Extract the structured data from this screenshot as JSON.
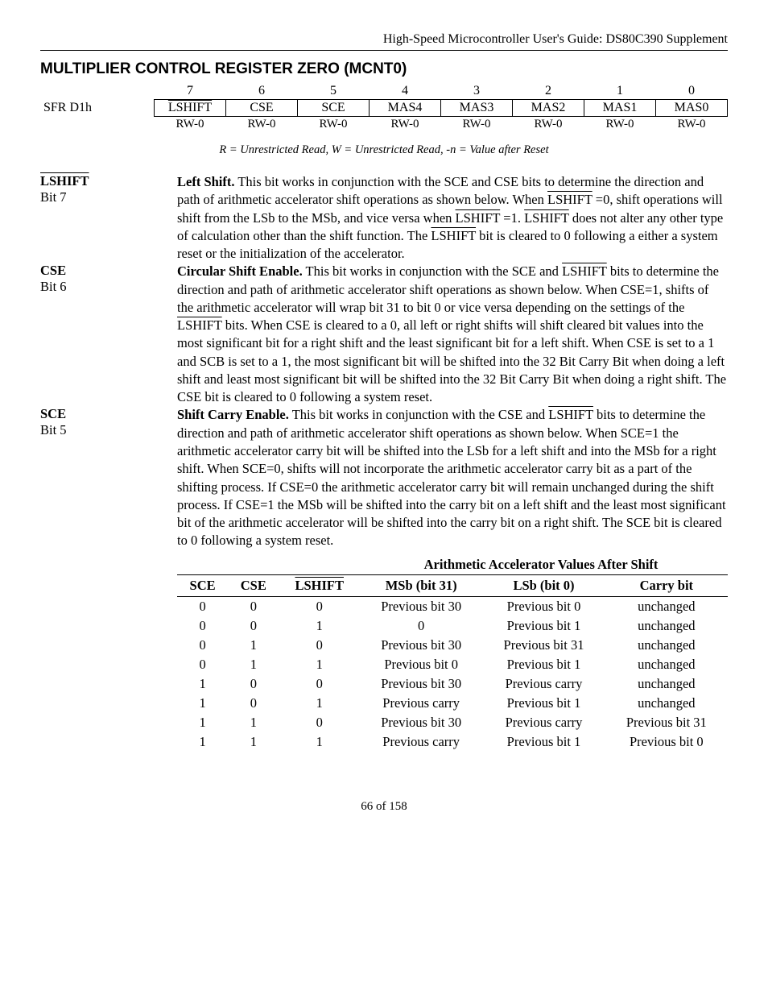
{
  "header": "High-Speed Microcontroller User's Guide: DS80C390 Supplement",
  "section_title": "MULTIPLIER CONTROL REGISTER ZERO (MCNT0)",
  "sfr_label": "SFR D1h",
  "bit_numbers": [
    "7",
    "6",
    "5",
    "4",
    "3",
    "2",
    "1",
    "0"
  ],
  "bit_names": [
    "LSHIFT",
    "CSE",
    "SCE",
    "MAS4",
    "MAS3",
    "MAS2",
    "MAS1",
    "MAS0"
  ],
  "bit_overline": [
    true,
    false,
    false,
    false,
    false,
    false,
    false,
    false
  ],
  "rw_values": [
    "RW-0",
    "RW-0",
    "RW-0",
    "RW-0",
    "RW-0",
    "RW-0",
    "RW-0",
    "RW-0"
  ],
  "legend": "R = Unrestricted Read, W = Unrestricted Read, -n = Value after Reset",
  "descs": {
    "lshift": {
      "name": "LSHIFT",
      "bit": "Bit 7"
    },
    "cse": {
      "name": "CSE",
      "bit": "Bit 6"
    },
    "sce": {
      "name": "SCE",
      "bit": "Bit 5"
    }
  },
  "shift_header": "Arithmetic Accelerator Values After Shift",
  "shift_cols": [
    "SCE",
    "CSE",
    "LSHIFT",
    "MSb (bit 31)",
    "LSb (bit 0)",
    "Carry bit"
  ],
  "shift_col_overline": [
    false,
    false,
    true,
    false,
    false,
    false
  ],
  "shift_rows": [
    [
      "0",
      "0",
      "0",
      "Previous bit 30",
      "Previous bit 0",
      "unchanged"
    ],
    [
      "0",
      "0",
      "1",
      "0",
      "Previous bit 1",
      "unchanged"
    ],
    [
      "0",
      "1",
      "0",
      "Previous bit 30",
      "Previous bit 31",
      "unchanged"
    ],
    [
      "0",
      "1",
      "1",
      "Previous bit 0",
      "Previous bit 1",
      "unchanged"
    ],
    [
      "1",
      "0",
      "0",
      "Previous bit 30",
      "Previous carry",
      "unchanged"
    ],
    [
      "1",
      "0",
      "1",
      "Previous carry",
      "Previous bit 1",
      "unchanged"
    ],
    [
      "1",
      "1",
      "0",
      "Previous bit 30",
      "Previous carry",
      "Previous bit 31"
    ],
    [
      "1",
      "1",
      "1",
      "Previous carry",
      "Previous bit 1",
      "Previous bit 0"
    ]
  ],
  "footer": "66 of 158"
}
